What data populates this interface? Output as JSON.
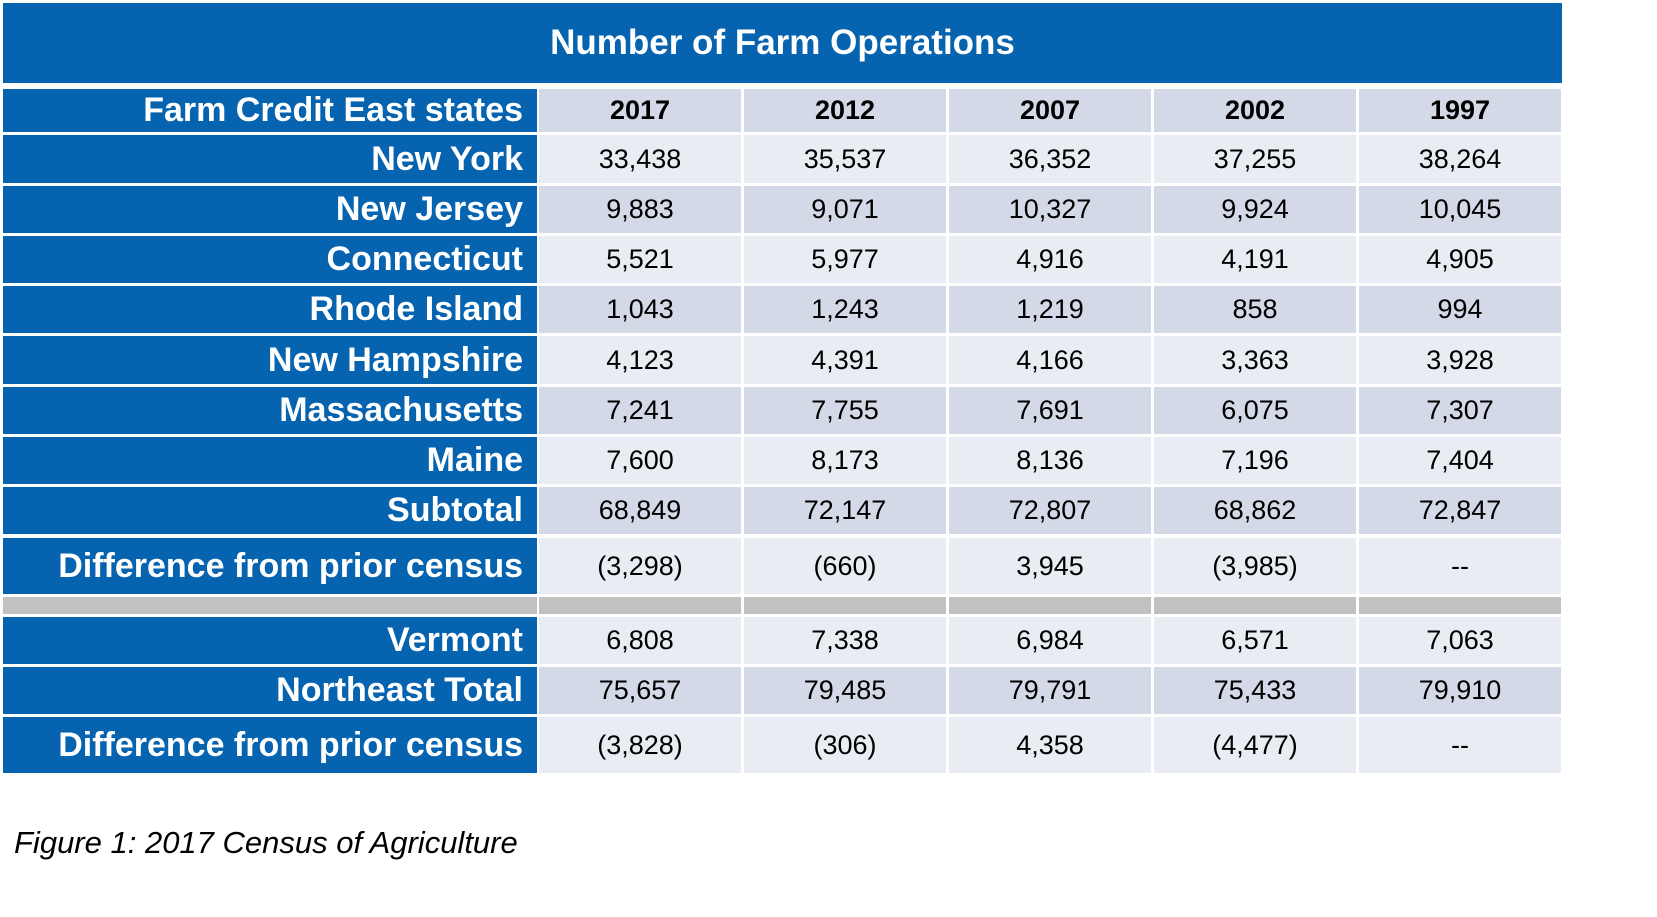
{
  "title": "Number of Farm Operations",
  "header": {
    "label": "Farm Credit East states",
    "years": [
      "2017",
      "2012",
      "2007",
      "2002",
      "1997"
    ]
  },
  "rows_top": [
    {
      "label": "New York",
      "values": [
        "33,438",
        "35,537",
        "36,352",
        "37,255",
        "38,264"
      ]
    },
    {
      "label": "New Jersey",
      "values": [
        "9,883",
        "9,071",
        "10,327",
        "9,924",
        "10,045"
      ]
    },
    {
      "label": "Connecticut",
      "values": [
        "5,521",
        "5,977",
        "4,916",
        "4,191",
        "4,905"
      ]
    },
    {
      "label": "Rhode Island",
      "values": [
        "1,043",
        "1,243",
        "1,219",
        "858",
        "994"
      ]
    },
    {
      "label": "New Hampshire",
      "values": [
        "4,123",
        "4,391",
        "4,166",
        "3,363",
        "3,928"
      ]
    },
    {
      "label": "Massachusetts",
      "values": [
        "7,241",
        "7,755",
        "7,691",
        "6,075",
        "7,307"
      ]
    },
    {
      "label": "Maine",
      "values": [
        "7,600",
        "8,173",
        "8,136",
        "7,196",
        "7,404"
      ]
    },
    {
      "label": "Subtotal",
      "values": [
        "68,849",
        "72,147",
        "72,807",
        "68,862",
        "72,847"
      ]
    },
    {
      "label": "Difference from prior census",
      "values": [
        "(3,298)",
        "(660)",
        "3,945",
        "(3,985)",
        "--"
      ]
    }
  ],
  "rows_bottom": [
    {
      "label": "Vermont",
      "values": [
        "6,808",
        "7,338",
        "6,984",
        "6,571",
        "7,063"
      ]
    },
    {
      "label": "Northeast Total",
      "values": [
        "75,657",
        "79,485",
        "79,791",
        "75,433",
        "79,910"
      ]
    },
    {
      "label": "Difference from prior census",
      "values": [
        "(3,828)",
        "(306)",
        "4,358",
        "(4,477)",
        "--"
      ]
    }
  ],
  "caption": "Figure 1: 2017 Census of Agriculture",
  "colors": {
    "header_blue": "#0563b0",
    "row_dark": "#d3d9e6",
    "row_light": "#e9ecf2",
    "separator": "#c1c1c1"
  }
}
